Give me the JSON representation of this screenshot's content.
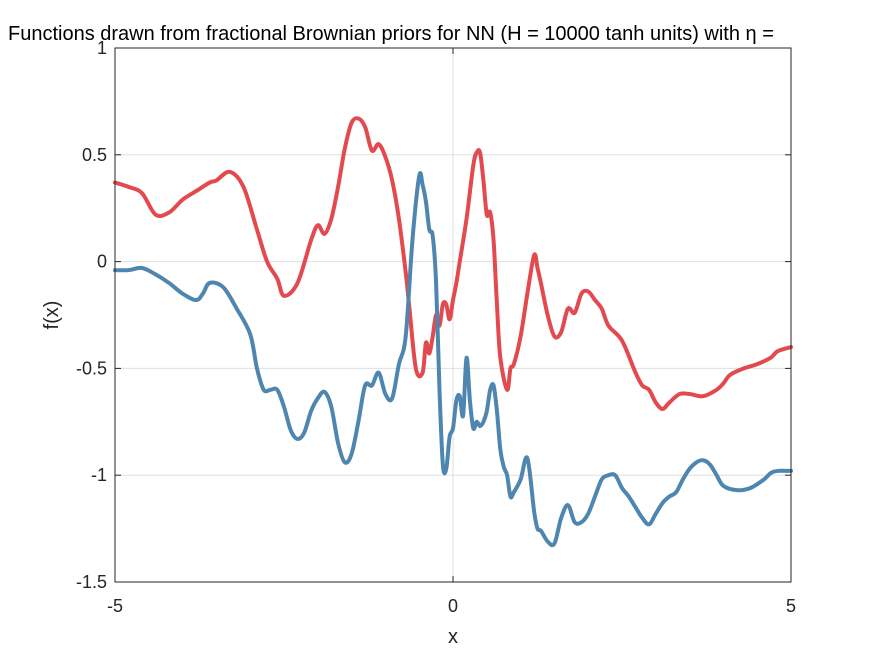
{
  "chart_data": {
    "type": "line",
    "title": "Functions drawn from fractional Brownian priors for NN (H = 10000 tanh units) with η = ",
    "xlabel": "x",
    "ylabel": "f(x)",
    "xlim": [
      -5,
      5
    ],
    "ylim": [
      -1.5,
      1
    ],
    "xticks": [
      -5,
      0,
      5
    ],
    "xtick_labels": [
      "-5",
      "0",
      "5"
    ],
    "yticks": [
      -1.5,
      -1,
      -0.5,
      0,
      0.5,
      1
    ],
    "ytick_labels": [
      "-1.5",
      "-1",
      "-0.5",
      "0",
      "0.5",
      "1"
    ],
    "grid": true,
    "series": [
      {
        "color": "#e34a4f",
        "x": [
          -5,
          -4.8,
          -4.6,
          -4.4,
          -4.2,
          -4.0,
          -3.8,
          -3.6,
          -3.5,
          -3.3,
          -3.1,
          -2.9,
          -2.75,
          -2.6,
          -2.5,
          -2.3,
          -2.1,
          -2.0,
          -1.9,
          -1.8,
          -1.7,
          -1.6,
          -1.5,
          -1.4,
          -1.3,
          -1.2,
          -1.1,
          -1.0,
          -0.9,
          -0.8,
          -0.7,
          -0.65,
          -0.55,
          -0.45,
          -0.4,
          -0.35,
          -0.3,
          -0.25,
          -0.2,
          -0.15,
          -0.1,
          -0.05,
          0.0,
          0.05,
          0.1,
          0.2,
          0.3,
          0.35,
          0.4,
          0.45,
          0.5,
          0.55,
          0.6,
          0.65,
          0.7,
          0.8,
          0.85,
          0.9,
          1.0,
          1.1,
          1.2,
          1.25,
          1.3,
          1.4,
          1.5,
          1.6,
          1.7,
          1.8,
          1.9,
          2.0,
          2.1,
          2.2,
          2.3,
          2.5,
          2.7,
          2.8,
          2.9,
          3.0,
          3.1,
          3.2,
          3.35,
          3.5,
          3.7,
          3.9,
          4.0,
          4.1,
          4.3,
          4.5,
          4.7,
          4.8,
          5.0
        ],
        "y": [
          0.37,
          0.35,
          0.32,
          0.22,
          0.23,
          0.29,
          0.33,
          0.37,
          0.38,
          0.42,
          0.35,
          0.15,
          0.0,
          -0.08,
          -0.16,
          -0.1,
          0.1,
          0.17,
          0.13,
          0.2,
          0.35,
          0.53,
          0.65,
          0.67,
          0.63,
          0.52,
          0.55,
          0.49,
          0.38,
          0.2,
          -0.05,
          -0.2,
          -0.5,
          -0.52,
          -0.38,
          -0.43,
          -0.35,
          -0.25,
          -0.3,
          -0.2,
          -0.2,
          -0.27,
          -0.18,
          -0.1,
          0.0,
          0.2,
          0.45,
          0.51,
          0.51,
          0.38,
          0.22,
          0.23,
          0.1,
          -0.2,
          -0.45,
          -0.6,
          -0.5,
          -0.48,
          -0.35,
          -0.15,
          0.03,
          -0.03,
          -0.1,
          -0.25,
          -0.35,
          -0.33,
          -0.22,
          -0.24,
          -0.15,
          -0.14,
          -0.18,
          -0.22,
          -0.3,
          -0.37,
          -0.52,
          -0.58,
          -0.6,
          -0.66,
          -0.69,
          -0.66,
          -0.62,
          -0.62,
          -0.63,
          -0.6,
          -0.57,
          -0.53,
          -0.5,
          -0.48,
          -0.45,
          -0.42,
          -0.4
        ]
      },
      {
        "color": "#4f86b0",
        "x": [
          -5,
          -4.8,
          -4.6,
          -4.4,
          -4.2,
          -4.0,
          -3.8,
          -3.7,
          -3.6,
          -3.4,
          -3.2,
          -3.0,
          -2.9,
          -2.8,
          -2.7,
          -2.6,
          -2.5,
          -2.4,
          -2.3,
          -2.2,
          -2.1,
          -2.0,
          -1.9,
          -1.8,
          -1.7,
          -1.6,
          -1.5,
          -1.4,
          -1.3,
          -1.2,
          -1.1,
          -1.0,
          -0.9,
          -0.8,
          -0.7,
          -0.6,
          -0.5,
          -0.45,
          -0.4,
          -0.35,
          -0.3,
          -0.25,
          -0.2,
          -0.15,
          -0.1,
          -0.05,
          0.0,
          0.05,
          0.1,
          0.15,
          0.2,
          0.25,
          0.3,
          0.35,
          0.4,
          0.45,
          0.5,
          0.55,
          0.6,
          0.65,
          0.7,
          0.75,
          0.8,
          0.85,
          0.9,
          1.0,
          1.1,
          1.2,
          1.25,
          1.3,
          1.4,
          1.5,
          1.6,
          1.7,
          1.8,
          1.9,
          2.0,
          2.1,
          2.2,
          2.3,
          2.4,
          2.5,
          2.6,
          2.7,
          2.8,
          2.9,
          3.0,
          3.1,
          3.2,
          3.3,
          3.4,
          3.5,
          3.6,
          3.7,
          3.8,
          3.9,
          4.0,
          4.2,
          4.4,
          4.6,
          4.7,
          4.8,
          5.0
        ],
        "y": [
          -0.04,
          -0.04,
          -0.03,
          -0.06,
          -0.1,
          -0.15,
          -0.18,
          -0.15,
          -0.1,
          -0.12,
          -0.22,
          -0.34,
          -0.5,
          -0.6,
          -0.6,
          -0.6,
          -0.68,
          -0.79,
          -0.83,
          -0.8,
          -0.7,
          -0.64,
          -0.61,
          -0.68,
          -0.85,
          -0.94,
          -0.9,
          -0.75,
          -0.58,
          -0.58,
          -0.52,
          -0.62,
          -0.64,
          -0.48,
          -0.35,
          0.1,
          0.4,
          0.36,
          0.28,
          0.15,
          0.12,
          -0.1,
          -0.6,
          -0.95,
          -0.97,
          -0.82,
          -0.78,
          -0.65,
          -0.63,
          -0.72,
          -0.45,
          -0.65,
          -0.78,
          -0.75,
          -0.77,
          -0.75,
          -0.7,
          -0.6,
          -0.58,
          -0.7,
          -0.88,
          -0.96,
          -1.0,
          -1.1,
          -1.08,
          -1.02,
          -0.92,
          -1.17,
          -1.25,
          -1.26,
          -1.31,
          -1.32,
          -1.2,
          -1.14,
          -1.22,
          -1.22,
          -1.18,
          -1.1,
          -1.02,
          -1.0,
          -1.0,
          -1.06,
          -1.1,
          -1.15,
          -1.2,
          -1.23,
          -1.18,
          -1.13,
          -1.1,
          -1.08,
          -1.02,
          -0.97,
          -0.94,
          -0.93,
          -0.95,
          -1.0,
          -1.05,
          -1.07,
          -1.06,
          -1.02,
          -0.99,
          -0.98,
          -0.98
        ]
      }
    ]
  }
}
